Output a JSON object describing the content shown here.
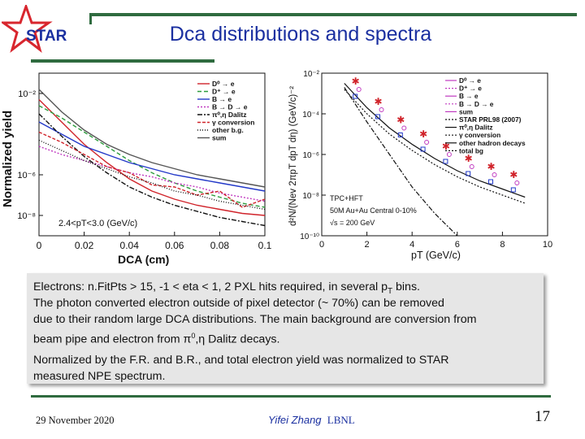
{
  "slide": {
    "title": "Dca distributions and spectra",
    "logo_text": "STAR",
    "footer_date": "29 November 2020",
    "footer_author": "Yifei Zhang",
    "footer_affil": "LBNL",
    "page_number": "17",
    "colors": {
      "accent_green": "#2f6b3f",
      "title_blue": "#1a2fa0",
      "logo_red": "#d8262e"
    }
  },
  "text": {
    "line1a": "Electrons: n.FitPts > 15, -1 < eta < 1, 2 PXL hits required, in several p",
    "line1sub": "T",
    "line1b": " bins.",
    "line2": "The photon converted electron outside of pixel detector (~ 70%) can be removed",
    "line3": "due to their random large DCA distributions. The main background are conversion from",
    "line4a": "beam pipe and electron from ",
    "line4pi": "π",
    "line4sup": "0",
    "line4b": ",η Dalitz decays.",
    "line5": "Normalized by the F.R. and B.R., and total electron yield was normalized to STAR",
    "line6": "measured NPE spectrum."
  },
  "chart_data": [
    {
      "type": "line",
      "title": "",
      "xlabel": "DCA (cm)",
      "ylabel": "Normalized yield",
      "xlim": [
        0,
        0.1
      ],
      "ylim_log10": [
        -9,
        -1
      ],
      "x_ticks": [
        "0",
        "0.02",
        "0.04",
        "0.06",
        "0.08",
        "0.1"
      ],
      "y_ticks": [
        "10⁻²",
        "10⁻⁶",
        "10⁻⁸"
      ],
      "annotation": "2.4<pT<3.0 (GeV/c)",
      "legend": [
        "D⁰ → e",
        "D⁺ → e",
        "B → e",
        "B → D → e",
        "π⁰,η Dalitz",
        "γ conversion",
        "other b.g.",
        "sum"
      ],
      "x": [
        0.0,
        0.01,
        0.02,
        0.03,
        0.04,
        0.05,
        0.06,
        0.07,
        0.08,
        0.09,
        0.1
      ],
      "series": [
        {
          "name": "D⁰ → e",
          "color": "#d0232a",
          "values": [
            -2.3,
            -3.4,
            -4.5,
            -5.4,
            -6.2,
            -6.8,
            -7.2,
            -7.5,
            -7.7,
            -7.9,
            -8.0
          ]
        },
        {
          "name": "D⁺ → e",
          "color": "#2c9c3c",
          "values": [
            -2.6,
            -3.2,
            -3.9,
            -4.6,
            -5.3,
            -5.9,
            -6.4,
            -6.8,
            -7.1,
            -7.4,
            -7.6
          ]
        },
        {
          "name": "B → e",
          "color": "#2238c8",
          "values": [
            -3.4,
            -4.0,
            -4.6,
            -5.0,
            -5.4,
            -5.7,
            -6.0,
            -6.2,
            -6.4,
            -6.6,
            -6.8
          ]
        },
        {
          "name": "B → D → e",
          "color": "#c03ac0",
          "values": [
            -4.6,
            -5.0,
            -5.3,
            -5.6,
            -5.9,
            -6.1,
            -6.4,
            -6.6,
            -6.9,
            -7.1,
            -7.3
          ]
        },
        {
          "name": "π⁰,η Dalitz",
          "color": "#111111",
          "values": [
            -3.0,
            -4.1,
            -5.1,
            -5.9,
            -6.6,
            -7.1,
            -7.5,
            -7.8,
            -8.1,
            -8.3,
            -8.5
          ]
        },
        {
          "name": "γ conversion",
          "color": "#d0232a",
          "values": [
            -3.9,
            -4.4,
            -5.0,
            -5.6,
            -5.9,
            -6.5,
            -6.6,
            -7.0,
            -6.8,
            -7.6,
            -7.2
          ]
        },
        {
          "name": "other b.g.",
          "color": "#111111",
          "values": [
            -4.3,
            -4.8,
            -5.3,
            -5.7,
            -6.1,
            -6.4,
            -6.8,
            -7.0,
            -7.3,
            -7.5,
            -7.7
          ]
        },
        {
          "name": "sum",
          "color": "#555555",
          "values": [
            -1.8,
            -2.9,
            -3.8,
            -4.5,
            -5.0,
            -5.4,
            -5.7,
            -6.0,
            -6.2,
            -6.4,
            -6.6
          ]
        }
      ]
    },
    {
      "type": "scatter",
      "title": "",
      "xlabel": "pT (GeV/c)",
      "ylabel": "d²N/(Nev 2πpT dpT dη) (GeV/c)⁻²",
      "xlim": [
        0,
        10
      ],
      "ylim_log10": [
        -10,
        -2
      ],
      "x_ticks": [
        "0",
        "2",
        "4",
        "6",
        "8",
        "10"
      ],
      "y_ticks": [
        "10⁻²",
        "10⁻⁴",
        "10⁻⁶",
        "10⁻⁸",
        "10⁻¹⁰"
      ],
      "annotations": [
        "TPC+HFT",
        "50M Au+Au Central 0-10%",
        "√s = 200 GeV"
      ],
      "legend": [
        "D⁰ → e",
        "D⁺ → e",
        "B → e",
        "B → D → e",
        "sum",
        "STAR PRL98 (2007)",
        "π⁰,η Dalitz",
        "γ conversion",
        "other hadron decays",
        "total bg"
      ],
      "star_points": {
        "x": [
          1.5,
          2.5,
          3.5,
          4.5,
          5.5,
          6.5,
          7.5,
          8.5
        ],
        "y_log10": [
          -2.4,
          -3.4,
          -4.3,
          -5.0,
          -5.6,
          -6.2,
          -6.6,
          -7.0
        ]
      },
      "curves": [
        {
          "name": "π⁰,η Dalitz",
          "x": [
            1,
            2,
            3,
            4,
            5,
            6
          ],
          "y_log10": [
            -2.7,
            -4.4,
            -6.0,
            -7.6,
            -8.9,
            -10.0
          ]
        },
        {
          "name": "γ conversion",
          "x": [
            1,
            2,
            3,
            4,
            5,
            6,
            7,
            8,
            9
          ],
          "y_log10": [
            -2.8,
            -4.0,
            -5.0,
            -5.8,
            -6.5,
            -7.1,
            -7.6,
            -8.0,
            -8.4
          ]
        },
        {
          "name": "total bg",
          "x": [
            1,
            2,
            3,
            4,
            5,
            6,
            7,
            8,
            9
          ],
          "y_log10": [
            -2.5,
            -3.7,
            -4.7,
            -5.5,
            -6.2,
            -6.8,
            -7.3,
            -7.7,
            -8.1
          ]
        }
      ]
    }
  ]
}
